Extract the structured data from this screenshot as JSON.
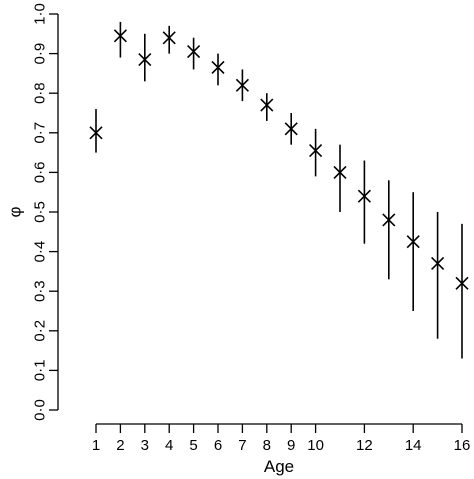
{
  "chart_data": {
    "type": "scatter",
    "title": "",
    "xlabel": "Age",
    "ylabel": "φ",
    "xlim": [
      1,
      16
    ],
    "ylim": [
      0,
      1
    ],
    "xticks": [
      1,
      2,
      3,
      4,
      5,
      6,
      7,
      8,
      9,
      10,
      12,
      14,
      16
    ],
    "xtick_labels": [
      "1",
      "2",
      "3",
      "4",
      "5",
      "6",
      "7",
      "8",
      "9",
      "10",
      "12",
      "14",
      "16"
    ],
    "yticks": [
      0,
      0.1,
      0.2,
      0.3,
      0.4,
      0.5,
      0.6,
      0.7,
      0.8,
      0.9,
      1.0
    ],
    "ytick_labels": [
      "0·0",
      "0·1",
      "0·2",
      "0·3",
      "0·4",
      "0·5",
      "0·6",
      "0·7",
      "0·8",
      "0·9",
      "1·0"
    ],
    "grid": false,
    "marker": "x",
    "points": [
      {
        "x": 1,
        "y": 0.7,
        "lower": 0.65,
        "upper": 0.76
      },
      {
        "x": 2,
        "y": 0.945,
        "lower": 0.89,
        "upper": 0.98
      },
      {
        "x": 3,
        "y": 0.885,
        "lower": 0.83,
        "upper": 0.95
      },
      {
        "x": 4,
        "y": 0.94,
        "lower": 0.9,
        "upper": 0.97
      },
      {
        "x": 5,
        "y": 0.905,
        "lower": 0.86,
        "upper": 0.94
      },
      {
        "x": 6,
        "y": 0.865,
        "lower": 0.82,
        "upper": 0.9
      },
      {
        "x": 7,
        "y": 0.82,
        "lower": 0.78,
        "upper": 0.86
      },
      {
        "x": 8,
        "y": 0.77,
        "lower": 0.73,
        "upper": 0.8
      },
      {
        "x": 9,
        "y": 0.71,
        "lower": 0.67,
        "upper": 0.75
      },
      {
        "x": 10,
        "y": 0.655,
        "lower": 0.59,
        "upper": 0.71
      },
      {
        "x": 11,
        "y": 0.6,
        "lower": 0.5,
        "upper": 0.67
      },
      {
        "x": 12,
        "y": 0.54,
        "lower": 0.42,
        "upper": 0.63
      },
      {
        "x": 13,
        "y": 0.48,
        "lower": 0.33,
        "upper": 0.58
      },
      {
        "x": 14,
        "y": 0.425,
        "lower": 0.25,
        "upper": 0.55
      },
      {
        "x": 15,
        "y": 0.37,
        "lower": 0.18,
        "upper": 0.5
      },
      {
        "x": 16,
        "y": 0.32,
        "lower": 0.13,
        "upper": 0.47
      }
    ]
  }
}
